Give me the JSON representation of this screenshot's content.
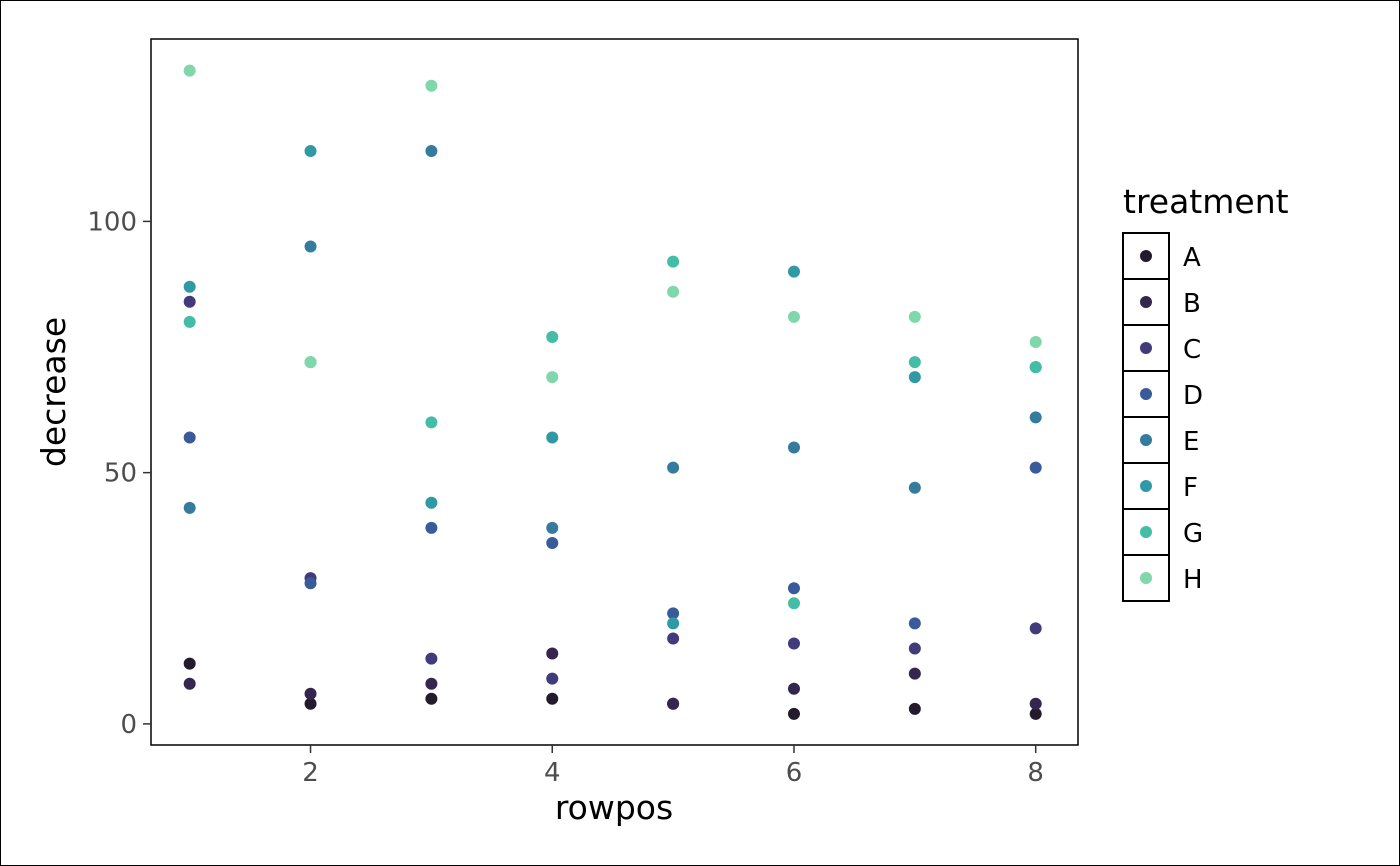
{
  "chart_data": {
    "type": "scatter",
    "xlabel": "rowpos",
    "ylabel": "decrease",
    "xlim": [
      0.68,
      8.35
    ],
    "ylim": [
      -4.2,
      136.3
    ],
    "xticks": [
      2,
      4,
      6,
      8
    ],
    "xtick_labels": [
      "2",
      "4",
      "6",
      "8"
    ],
    "yticks": [
      0,
      50,
      100
    ],
    "ytick_labels": [
      "0",
      "50",
      "100"
    ],
    "grid": false,
    "legend": {
      "title": "treatment",
      "placement": "right",
      "entries": [
        "A",
        "B",
        "C",
        "D",
        "E",
        "F",
        "G",
        "H"
      ]
    },
    "series": [
      {
        "name": "A",
        "color": "#231a2c",
        "x": [
          1,
          2,
          3,
          4,
          5,
          6,
          7,
          8
        ],
        "y": [
          12,
          4,
          5,
          5,
          4,
          2,
          3,
          2
        ]
      },
      {
        "name": "B",
        "color": "#35264f",
        "x": [
          1,
          2,
          3,
          4,
          5,
          6,
          7,
          8
        ],
        "y": [
          8,
          6,
          8,
          14,
          4,
          7,
          10,
          4
        ]
      },
      {
        "name": "C",
        "color": "#413b7c",
        "x": [
          1,
          2,
          3,
          4,
          5,
          6,
          7,
          8
        ],
        "y": [
          84,
          29,
          13,
          9,
          17,
          16,
          15,
          19
        ]
      },
      {
        "name": "D",
        "color": "#3a5b99",
        "x": [
          1,
          2,
          3,
          4,
          5,
          6,
          7,
          8
        ],
        "y": [
          57,
          28,
          39,
          36,
          22,
          27,
          20,
          51
        ]
      },
      {
        "name": "E",
        "color": "#357b9d",
        "x": [
          1,
          2,
          3,
          4,
          5,
          6,
          7,
          8
        ],
        "y": [
          43,
          95,
          114,
          39,
          51,
          55,
          47,
          61
        ]
      },
      {
        "name": "F",
        "color": "#2f9aa6",
        "x": [
          1,
          2,
          3,
          4,
          5,
          6,
          7,
          8
        ],
        "y": [
          87,
          114,
          44,
          57,
          20,
          90,
          69,
          71
        ]
      },
      {
        "name": "G",
        "color": "#44bda6",
        "x": [
          1,
          2,
          3,
          4,
          5,
          6,
          7,
          8
        ],
        "y": [
          80,
          72,
          60,
          77,
          92,
          24,
          72,
          71
        ]
      },
      {
        "name": "H",
        "color": "#7fd7aa",
        "x": [
          1,
          2,
          3,
          4,
          5,
          6,
          7,
          8
        ],
        "y": [
          130,
          72,
          127,
          69,
          86,
          81,
          81,
          76
        ]
      }
    ]
  }
}
